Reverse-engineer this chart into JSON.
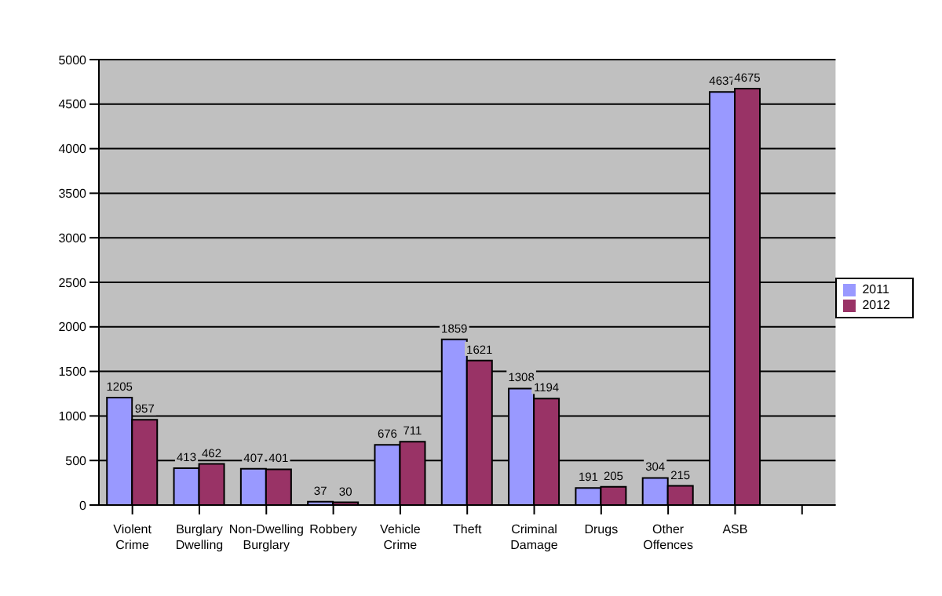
{
  "chart_data": {
    "type": "bar",
    "categories": [
      "Violent Crime",
      "Burglary Dwelling",
      "Non-Dwelling Burglary",
      "Robbery",
      "Vehicle Crime",
      "Theft",
      "Criminal Damage",
      "Drugs",
      "Other Offences",
      "ASB",
      null
    ],
    "series": [
      {
        "name": "2011",
        "color": "#9999ff",
        "values": [
          1205,
          413,
          407,
          37,
          676,
          1859,
          1308,
          191,
          304,
          4637,
          null
        ]
      },
      {
        "name": "2012",
        "color": "#993366",
        "values": [
          957,
          462,
          401,
          30,
          711,
          1621,
          1194,
          205,
          215,
          4675,
          null
        ]
      }
    ],
    "ylim": [
      0,
      5000
    ],
    "yticks": [
      0,
      500,
      1000,
      1500,
      2000,
      2500,
      3000,
      3500,
      4000,
      4500,
      5000
    ],
    "grid": "y",
    "legend": "right",
    "data_labels": true
  }
}
